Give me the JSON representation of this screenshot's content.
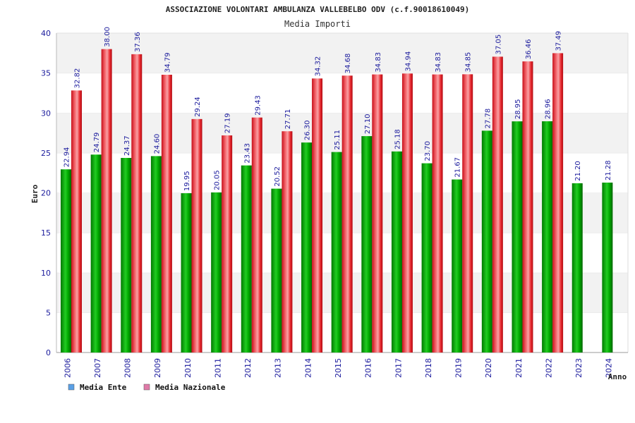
{
  "chart_data": {
    "type": "bar",
    "title": "ASSOCIAZIONE VOLONTARI AMBULANZA VALLEBELBO ODV (c.f.90018610049)",
    "subtitle": "Media Importi",
    "ylabel": "Euro",
    "xlabel": "Anno",
    "ylim": [
      0,
      40
    ],
    "yticks": [
      0,
      5,
      10,
      15,
      20,
      25,
      30,
      35,
      40
    ],
    "grid": true,
    "legend_position": "bottom-left",
    "categories": [
      "2006",
      "2007",
      "2008",
      "2009",
      "2010",
      "2011",
      "2012",
      "2013",
      "2014",
      "2015",
      "2016",
      "2017",
      "2018",
      "2019",
      "2020",
      "2021",
      "2022",
      "2023",
      "2024"
    ],
    "series": [
      {
        "name": "Media Ente",
        "color": "#00aa00",
        "legend_color": "#5aa0e6",
        "values": [
          22.94,
          24.79,
          24.37,
          24.6,
          19.95,
          20.05,
          23.43,
          20.52,
          26.3,
          25.11,
          27.1,
          25.18,
          23.7,
          21.67,
          27.78,
          28.95,
          28.96,
          21.2,
          21.28
        ],
        "labels": [
          "22.94",
          "24.79",
          "24.37",
          "24.60",
          "19.95",
          "20.05",
          "23.43",
          "20.52",
          "26.30",
          "25.11",
          "27.10",
          "25.18",
          "23.70",
          "21.67",
          "27.78",
          "28.95",
          "28.96",
          "21.20",
          "21.28"
        ]
      },
      {
        "name": "Media Nazionale",
        "color": "#e8282e",
        "legend_color": "#e07aa8",
        "values": [
          32.82,
          38.0,
          37.36,
          34.79,
          29.24,
          27.19,
          29.43,
          27.71,
          34.32,
          34.68,
          34.83,
          34.94,
          34.83,
          34.85,
          37.05,
          36.46,
          37.49,
          null,
          null
        ],
        "labels": [
          "32.82",
          "38.00",
          "37.36",
          "34.79",
          "29.24",
          "27.19",
          "29.43",
          "27.71",
          "34.32",
          "34.68",
          "34.83",
          "34.94",
          "34.83",
          "34.85",
          "37.05",
          "36.46",
          "37.49",
          null,
          null
        ]
      }
    ]
  }
}
